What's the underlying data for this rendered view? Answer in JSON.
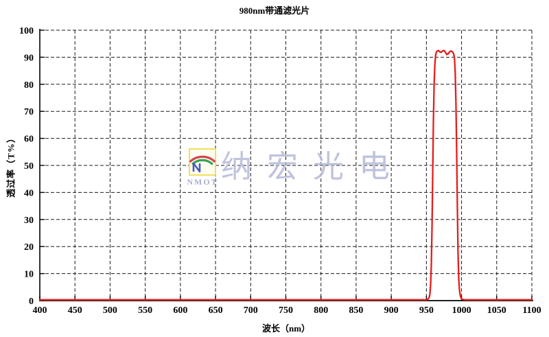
{
  "page": {
    "background": "#ffffff"
  },
  "chart_data": {
    "type": "line",
    "title": "980nm带通滤光片",
    "xlabel": "波长（nm）",
    "ylabel": "透过率（T%）",
    "xlim": [
      400,
      1100
    ],
    "ylim": [
      0,
      100
    ],
    "x_ticks": [
      400,
      450,
      500,
      550,
      600,
      650,
      700,
      750,
      800,
      850,
      900,
      950,
      1000,
      1050,
      1100
    ],
    "y_ticks": [
      0,
      10,
      20,
      30,
      40,
      50,
      60,
      70,
      80,
      90,
      100
    ],
    "grid": "dashed-black",
    "legend": "none",
    "axis_color": "#000000",
    "series": [
      {
        "name": "transmission",
        "color": "#e51c1c",
        "points": [
          [
            400,
            0.3
          ],
          [
            450,
            0.3
          ],
          [
            500,
            0.3
          ],
          [
            550,
            0.3
          ],
          [
            600,
            0.3
          ],
          [
            650,
            0.3
          ],
          [
            700,
            0.3
          ],
          [
            750,
            0.3
          ],
          [
            800,
            0.3
          ],
          [
            850,
            0.3
          ],
          [
            900,
            0.3
          ],
          [
            930,
            0.3
          ],
          [
            945,
            0.3
          ],
          [
            950,
            0.3
          ],
          [
            952,
            0.5
          ],
          [
            954,
            1.2
          ],
          [
            955,
            2.5
          ],
          [
            956,
            6
          ],
          [
            957,
            13
          ],
          [
            958,
            28
          ],
          [
            959,
            48
          ],
          [
            960,
            67
          ],
          [
            961,
            80
          ],
          [
            962,
            87
          ],
          [
            963,
            90.5
          ],
          [
            964,
            91.8
          ],
          [
            965,
            92.2
          ],
          [
            967,
            92.5
          ],
          [
            969,
            92.0
          ],
          [
            971,
            91.8
          ],
          [
            973,
            92.3
          ],
          [
            975,
            92.5
          ],
          [
            977,
            91.9
          ],
          [
            979,
            91.0
          ],
          [
            981,
            91.3
          ],
          [
            983,
            92.0
          ],
          [
            985,
            92.3
          ],
          [
            987,
            92.0
          ],
          [
            988,
            91.6
          ],
          [
            989,
            91.0
          ],
          [
            990,
            89.5
          ],
          [
            991,
            84
          ],
          [
            992,
            73
          ],
          [
            993,
            56
          ],
          [
            994,
            36
          ],
          [
            995,
            18
          ],
          [
            996,
            8
          ],
          [
            997,
            4
          ],
          [
            998,
            2.2
          ],
          [
            999,
            1.2
          ],
          [
            1000,
            0.7
          ],
          [
            1002,
            0.4
          ],
          [
            1005,
            0.3
          ],
          [
            1050,
            0.3
          ],
          [
            1100,
            0.3
          ]
        ]
      }
    ]
  },
  "watermark": {
    "text": "纳宏光电",
    "logo_text": "NMOT",
    "text_color": "#b9bdd9",
    "logo_border_color": "#efdf5e",
    "logo_arc_colors": [
      "#d9434b",
      "#35a457",
      "#4a58c0"
    ]
  }
}
